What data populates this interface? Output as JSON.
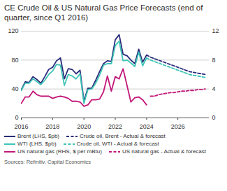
{
  "chart_data": {
    "type": "line",
    "title": "CE Crude Oil & US Natural Gas Price Forecasts (end of quarter, since Q1 2016)",
    "source": "Sources: Refinitiv, Capital Economics",
    "x": [
      2016,
      2016.25,
      2016.5,
      2016.75,
      2017,
      2017.25,
      2017.5,
      2017.75,
      2018,
      2018.25,
      2018.5,
      2018.75,
      2019,
      2019.25,
      2019.5,
      2019.75,
      2020,
      2020.25,
      2020.5,
      2020.75,
      2021,
      2021.25,
      2021.5,
      2021.75,
      2022,
      2022.25,
      2022.5,
      2022.75,
      2023,
      2023.25,
      2023.5,
      2023.75,
      2024,
      2024.25,
      2024.5,
      2024.75,
      2025,
      2025.25,
      2025.5,
      2025.75,
      2026,
      2026.25,
      2026.5,
      2026.75,
      2027,
      2027.25,
      2027.5,
      2027.75
    ],
    "xlim": [
      2016,
      2028
    ],
    "xticks": [
      2016,
      2018,
      2020,
      2022,
      2024,
      2026
    ],
    "ylim": [
      0,
      120
    ],
    "yticks": [
      0,
      40,
      80,
      120
    ],
    "y2lim": [
      0,
      12
    ],
    "y2ticks": [
      0,
      4,
      8,
      12
    ],
    "grid": true,
    "legend": "bottom",
    "series": [
      {
        "name": "Brent (LHS, $pb)",
        "color": "#2a2c7c",
        "line_style": "solid",
        "values": [
          39,
          50,
          49,
          57,
          53,
          48,
          57,
          67,
          70,
          79,
          83,
          54,
          68,
          67,
          61,
          66,
          23,
          41,
          41,
          52,
          64,
          75,
          79,
          78,
          108,
          115,
          88,
          86,
          80,
          75,
          95,
          77,
          87,
          null,
          null,
          null,
          null,
          null,
          null,
          null,
          null,
          null,
          null,
          null,
          null,
          null,
          null,
          null
        ]
      },
      {
        "name": "Crude oil, Brent - Actual & forecast",
        "color": "#2a2c7c",
        "line_style": "dashed",
        "values": [
          null,
          null,
          null,
          null,
          null,
          null,
          null,
          null,
          null,
          null,
          null,
          null,
          null,
          null,
          null,
          null,
          null,
          null,
          null,
          null,
          null,
          null,
          null,
          null,
          null,
          null,
          null,
          null,
          null,
          null,
          null,
          null,
          87,
          84,
          82,
          80,
          78,
          76,
          74,
          72,
          70,
          68,
          66,
          64,
          63,
          62,
          61,
          60
        ]
      },
      {
        "name": "WTI (LHS, $pb)",
        "color": "#3cc4b4",
        "line_style": "solid",
        "values": [
          38,
          48,
          48,
          54,
          50,
          46,
          52,
          60,
          65,
          74,
          73,
          45,
          60,
          58,
          54,
          61,
          20,
          39,
          40,
          48,
          59,
          73,
          75,
          75,
          100,
          106,
          79,
          80,
          76,
          71,
          91,
          72,
          83,
          null,
          null,
          null,
          null,
          null,
          null,
          null,
          null,
          null,
          null,
          null,
          null,
          null,
          null,
          null
        ]
      },
      {
        "name": "Crude oil, WTI - Actual & forecast",
        "color": "#3cc4b4",
        "line_style": "dashed",
        "values": [
          null,
          null,
          null,
          null,
          null,
          null,
          null,
          null,
          null,
          null,
          null,
          null,
          null,
          null,
          null,
          null,
          null,
          null,
          null,
          null,
          null,
          null,
          null,
          null,
          null,
          null,
          null,
          null,
          null,
          null,
          null,
          null,
          83,
          80,
          78,
          76,
          74,
          72,
          70,
          68,
          66,
          64,
          62,
          60,
          59,
          58,
          57,
          56
        ]
      },
      {
        "name": "US natural gas (RHS, $ per mBtu)",
        "color": "#c2187a",
        "line_style": "solid",
        "axis": "y2",
        "values": [
          2.0,
          2.9,
          2.9,
          3.7,
          3.2,
          3.0,
          3.0,
          3.0,
          2.7,
          2.9,
          3.0,
          2.9,
          2.7,
          2.3,
          2.3,
          2.2,
          1.6,
          1.8,
          2.5,
          2.5,
          2.6,
          3.6,
          5.8,
          3.7,
          5.7,
          5.4,
          6.8,
          4.5,
          2.2,
          2.8,
          2.9,
          2.5,
          1.8,
          null,
          null,
          null,
          null,
          null,
          null,
          null,
          null,
          null,
          null,
          null,
          null,
          null,
          null,
          null
        ]
      },
      {
        "name": "US natural gas - Actual & forecast",
        "color": "#c2187a",
        "line_style": "dashed",
        "axis": "y2",
        "values": [
          null,
          null,
          null,
          null,
          null,
          null,
          null,
          null,
          null,
          null,
          null,
          null,
          null,
          null,
          null,
          null,
          null,
          null,
          null,
          null,
          null,
          null,
          null,
          null,
          null,
          null,
          null,
          null,
          null,
          null,
          null,
          null,
          null,
          3.0,
          3.0,
          3.2,
          3.3,
          3.4,
          3.5,
          3.5,
          3.6,
          3.7,
          3.7,
          3.8,
          3.8,
          3.9,
          3.9,
          4.0
        ]
      }
    ]
  }
}
